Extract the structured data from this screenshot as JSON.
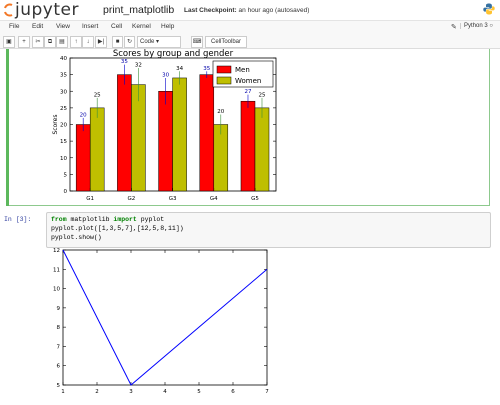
{
  "header": {
    "logo_text": "jupyter",
    "notebook_name": "print_matplotlib",
    "checkpoint_label": "Last Checkpoint:",
    "checkpoint_time": "an hour ago (autosaved)",
    "kernel_name": "Python 3"
  },
  "menu": [
    "File",
    "Edit",
    "View",
    "Insert",
    "Cell",
    "Kernel",
    "Help"
  ],
  "toolbar": {
    "cell_type": "Code",
    "celltoolbar_label": "CellToolbar"
  },
  "cell3": {
    "prompt": "In [3]:",
    "code_lines": [
      {
        "kw1": "from",
        "plain1": " matplotlib ",
        "kw2": "import",
        "plain2": " pyplot"
      },
      {
        "text": "pyplot.plot([1,3,5,7],[12,5,8,11])"
      },
      {
        "text": "pyplot.show()"
      }
    ]
  },
  "chart_data": [
    {
      "type": "bar",
      "title": "Scores by group and gender",
      "ylabel": "Scores",
      "xlabel": "",
      "categories": [
        "G1",
        "G2",
        "G3",
        "G4",
        "G5"
      ],
      "ylim": [
        0,
        40
      ],
      "yticks": [
        0,
        5,
        10,
        15,
        20,
        25,
        30,
        35,
        40
      ],
      "legend_position": "top-right",
      "series": [
        {
          "name": "Men",
          "color": "#ff0000",
          "values": [
            20,
            35,
            30,
            35,
            27
          ],
          "errors": [
            2,
            3,
            4,
            1,
            2
          ]
        },
        {
          "name": "Women",
          "color": "#bfbf00",
          "values": [
            25,
            32,
            34,
            20,
            25
          ],
          "errors": [
            3,
            5,
            2,
            3,
            3
          ]
        }
      ]
    },
    {
      "type": "line",
      "x": [
        1,
        3,
        5,
        7
      ],
      "y": [
        12,
        5,
        8,
        11
      ],
      "xlim": [
        1,
        7
      ],
      "ylim": [
        5,
        12
      ],
      "xticks": [
        1,
        2,
        3,
        4,
        5,
        6,
        7
      ],
      "yticks": [
        5,
        6,
        7,
        8,
        9,
        10,
        11,
        12
      ],
      "line_color": "#0000ff"
    }
  ]
}
